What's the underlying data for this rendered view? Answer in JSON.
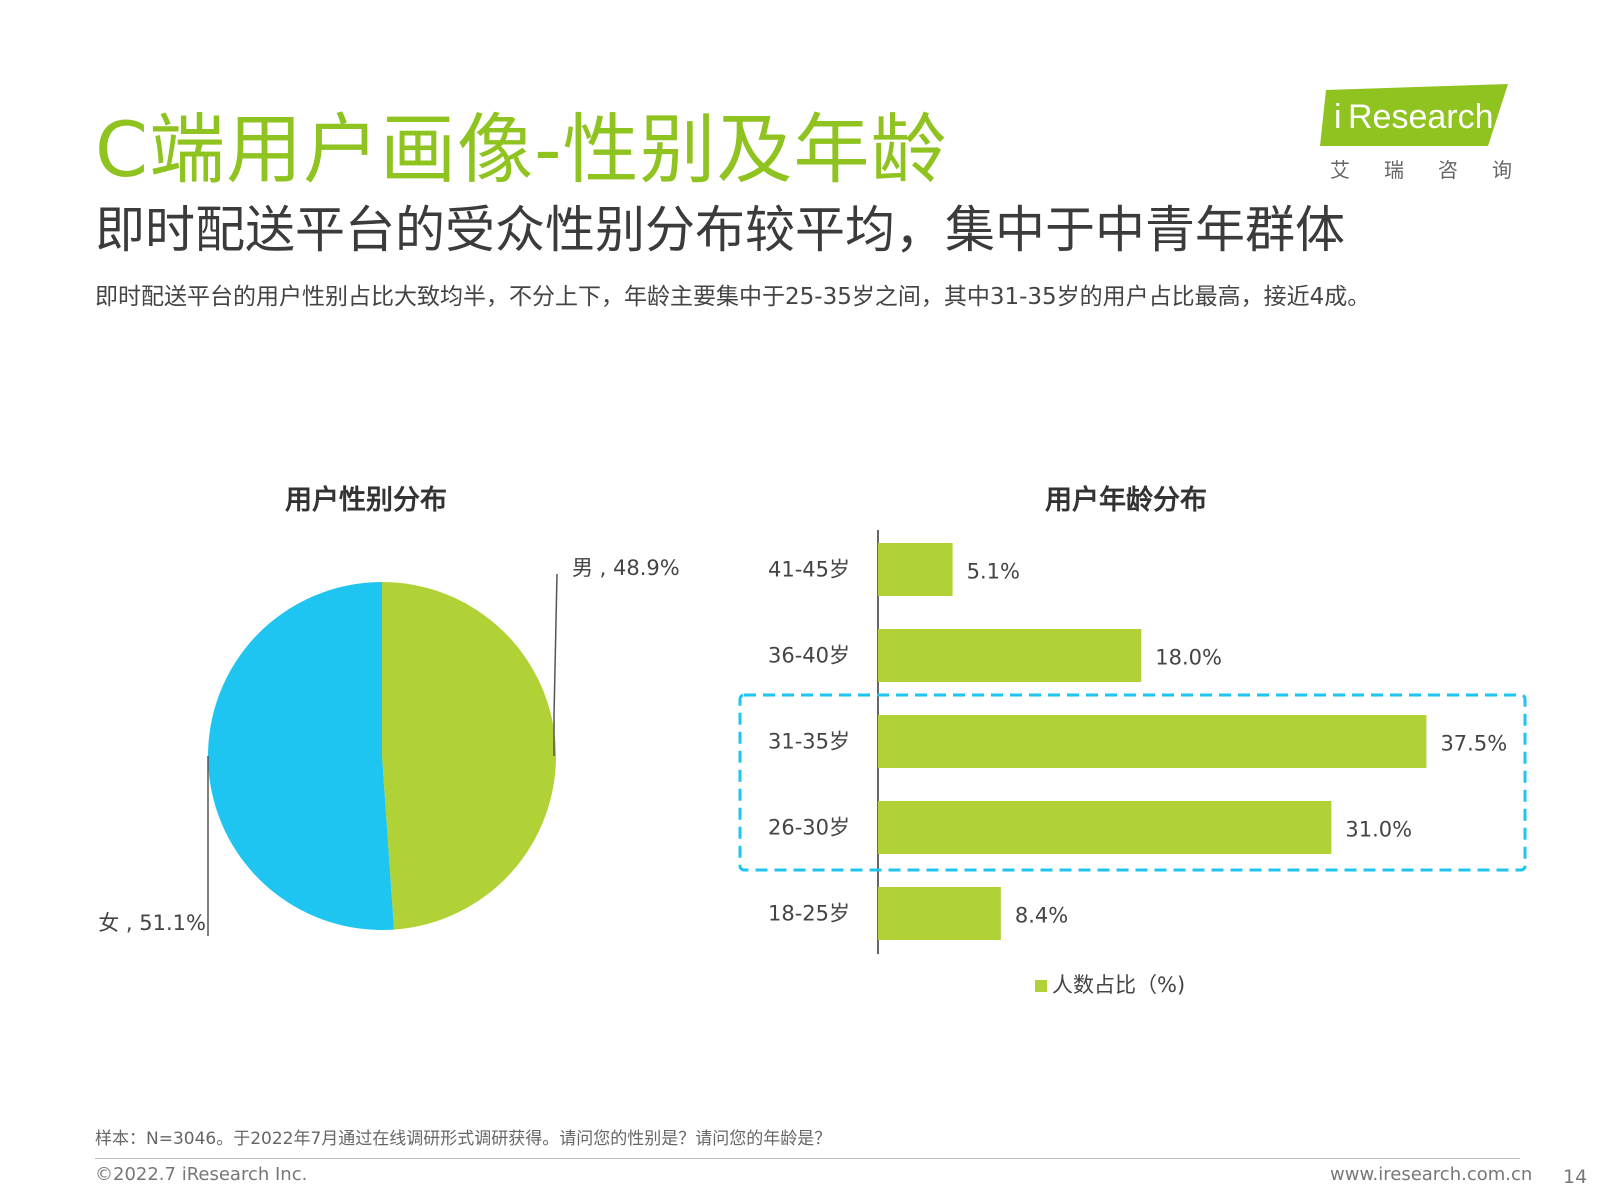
{
  "header": {
    "title": "C端用户画像-性别及年龄",
    "subtitle": "即时配送平台的受众性别分布较平均，集中于中青年群体",
    "description": "即时配送平台的用户性别占比大致均半，不分上下，年龄主要集中于25-35岁之间，其中31-35岁的用户占比最高，接近4成。"
  },
  "logo": {
    "brand_i": "i",
    "brand_rest": "Research",
    "cn": "艾瑞咨询",
    "color": "#8fc31f"
  },
  "chart_data": [
    {
      "type": "pie",
      "title": "用户性别分布",
      "slices": [
        {
          "label": "男",
          "value": 48.9,
          "display": "男 , 48.9%",
          "color": "#b0d236"
        },
        {
          "label": "女",
          "value": 51.1,
          "display": "女 , 51.1%",
          "color": "#1ec5f0"
        }
      ]
    },
    {
      "type": "bar",
      "orientation": "horizontal",
      "title": "用户年龄分布",
      "categories": [
        "41-45岁",
        "36-40岁",
        "31-35岁",
        "26-30岁",
        "18-25岁"
      ],
      "series": [
        {
          "name": "人数占比（%)",
          "values": [
            5.1,
            18.0,
            37.5,
            31.0,
            8.4
          ],
          "labels": [
            "5.1%",
            "18.0%",
            "37.5%",
            "31.0%",
            "8.4%"
          ],
          "color": "#b0d236"
        }
      ],
      "xlim": [
        0,
        40
      ],
      "highlight": {
        "categories": [
          "31-35岁",
          "26-30岁"
        ],
        "color": "#1ec5f0",
        "style": "dashed"
      },
      "legend": "bottom"
    }
  ],
  "footer": {
    "footnote": "样本：N=3046。于2022年7月通过在线调研形式调研获得。请问您的性别是？请问您的年龄是？",
    "copyright": "©2022.7 iResearch Inc.",
    "website": "www.iresearch.com.cn",
    "page": "14"
  }
}
